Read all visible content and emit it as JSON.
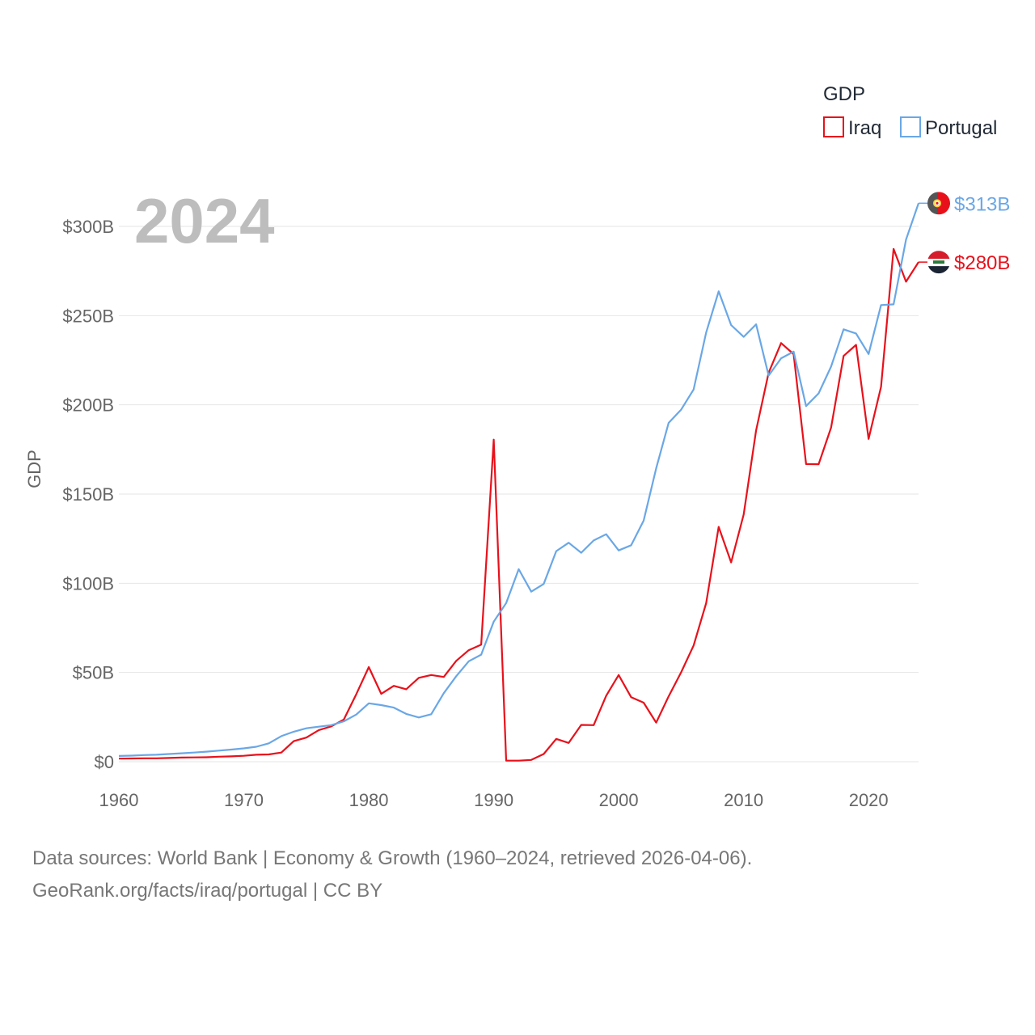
{
  "chart_data": {
    "type": "line",
    "title": "GDP",
    "year_label": "2024",
    "xlabel": "",
    "ylabel": "GDP",
    "xlim": [
      1960,
      2024
    ],
    "ylim": [
      0,
      300
    ],
    "y_unit": "billions USD",
    "x_ticks": [
      1960,
      1970,
      1980,
      1990,
      2000,
      2010,
      2020
    ],
    "y_ticks": [
      0,
      50,
      100,
      150,
      200,
      250,
      300
    ],
    "y_tick_labels": [
      "$0",
      "$50B",
      "$100B",
      "$150B",
      "$200B",
      "$250B",
      "$300B"
    ],
    "legend": {
      "title": "GDP",
      "position": "top-right"
    },
    "x": [
      1960,
      1961,
      1962,
      1963,
      1964,
      1965,
      1966,
      1967,
      1968,
      1969,
      1970,
      1971,
      1972,
      1973,
      1974,
      1975,
      1976,
      1977,
      1978,
      1979,
      1980,
      1981,
      1982,
      1983,
      1984,
      1985,
      1986,
      1987,
      1988,
      1989,
      1990,
      1991,
      1992,
      1993,
      1994,
      1995,
      1996,
      1997,
      1998,
      1999,
      2000,
      2001,
      2002,
      2003,
      2004,
      2005,
      2006,
      2007,
      2008,
      2009,
      2010,
      2011,
      2012,
      2013,
      2014,
      2015,
      2016,
      2017,
      2018,
      2019,
      2020,
      2021,
      2022,
      2023,
      2024
    ],
    "series": [
      {
        "name": "Iraq",
        "color": "#e8111b",
        "end_label": "$280B",
        "flag": "iraq-flag-icon",
        "values": [
          1.7,
          1.8,
          1.9,
          1.9,
          2.1,
          2.3,
          2.4,
          2.5,
          2.8,
          3.0,
          3.3,
          3.9,
          4.1,
          5.1,
          11.5,
          13.5,
          17.7,
          19.8,
          23.6,
          37.8,
          53.0,
          38.0,
          42.5,
          40.6,
          47.0,
          48.6,
          47.5,
          56.5,
          62.5,
          65.6,
          180.5,
          0.6,
          0.6,
          1.0,
          4.3,
          12.8,
          10.5,
          20.6,
          20.5,
          37.0,
          48.6,
          36.1,
          33.1,
          21.9,
          36.6,
          50.1,
          65.1,
          88.8,
          131.6,
          111.7,
          138.5,
          185.7,
          218.0,
          234.6,
          228.4,
          166.8,
          166.7,
          187.2,
          227.4,
          233.6,
          180.9,
          210.1,
          287.4,
          269.0,
          280.0
        ]
      },
      {
        "name": "Portugal",
        "color": "#6aa7e6",
        "end_label": "$313B",
        "flag": "portugal-flag-icon",
        "values": [
          3.2,
          3.4,
          3.7,
          3.9,
          4.3,
          4.7,
          5.1,
          5.6,
          6.2,
          6.8,
          7.5,
          8.4,
          10.3,
          14.3,
          16.8,
          18.7,
          19.6,
          20.5,
          22.6,
          26.4,
          32.7,
          31.7,
          30.3,
          26.8,
          24.8,
          26.6,
          38.4,
          47.9,
          56.3,
          60.0,
          78.5,
          88.9,
          107.9,
          95.3,
          99.6,
          118.0,
          122.7,
          117.1,
          124.0,
          127.5,
          118.4,
          121.3,
          135.1,
          164.4,
          189.9,
          197.3,
          208.6,
          240.5,
          263.6,
          244.7,
          238.1,
          245.1,
          216.4,
          226.1,
          229.8,
          199.3,
          206.4,
          221.4,
          242.3,
          240.0,
          228.5,
          255.9,
          256.3,
          292.6,
          313.0
        ]
      }
    ]
  },
  "footer": {
    "line1": "Data sources: World Bank | Economy & Growth (1960–2024, retrieved 2026-04-06).",
    "line2": "GeoRank.org/facts/iraq/portugal | CC BY"
  }
}
